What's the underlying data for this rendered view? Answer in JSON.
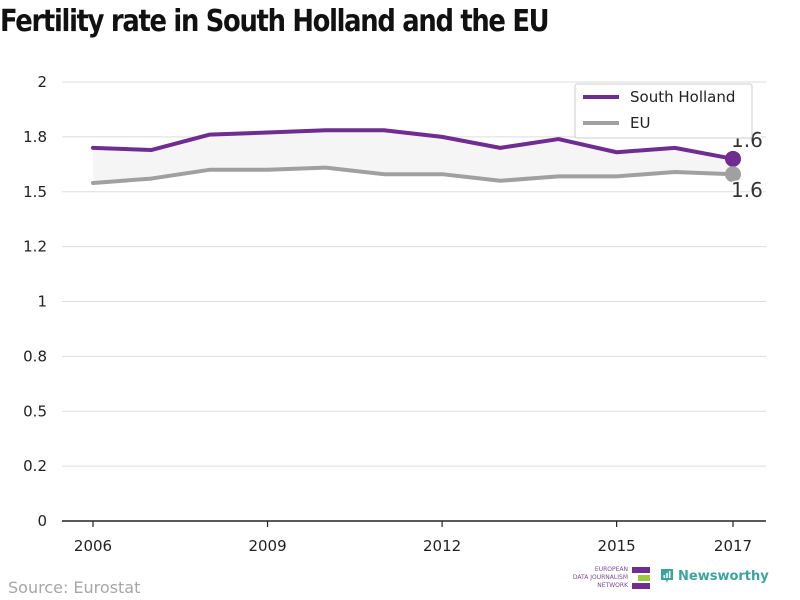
{
  "title": "Fertility rate in South Holland and the EU",
  "source": "Source: Eurostat",
  "logos": {
    "edjnet_lines": [
      "EUROPEAN",
      "DATA JOURNALISM",
      "NETWORK"
    ],
    "newsworthy": "Newsworthy"
  },
  "colors": {
    "south_holland": "#6f2c91",
    "eu": "#a0a0a0",
    "grid": "#dddddd",
    "band": "#f5f5f5",
    "edjnet_green": "#9cc93b",
    "newsworthy": "#3aa5a0"
  },
  "chart_data": {
    "type": "line",
    "title": "Fertility rate in South Holland and the EU",
    "x": [
      2006,
      2007,
      2008,
      2009,
      2010,
      2011,
      2012,
      2013,
      2014,
      2015,
      2016,
      2017
    ],
    "xticks": [
      2006,
      2009,
      2012,
      2015,
      2017
    ],
    "yticks": [
      "0",
      "0.2",
      "0.5",
      "0.8",
      "1",
      "1.2",
      "1.5",
      "1.8",
      "2"
    ],
    "ylim": [
      0,
      2
    ],
    "grid": true,
    "legend": "top-right",
    "series": [
      {
        "name": "South Holland",
        "values": [
          1.7,
          1.69,
          1.76,
          1.77,
          1.78,
          1.78,
          1.75,
          1.7,
          1.74,
          1.68,
          1.7,
          1.65
        ],
        "end_label": "1.6"
      },
      {
        "name": "EU",
        "values": [
          1.54,
          1.56,
          1.6,
          1.6,
          1.61,
          1.58,
          1.58,
          1.55,
          1.57,
          1.57,
          1.59,
          1.58
        ],
        "end_label": "1.6"
      }
    ]
  }
}
